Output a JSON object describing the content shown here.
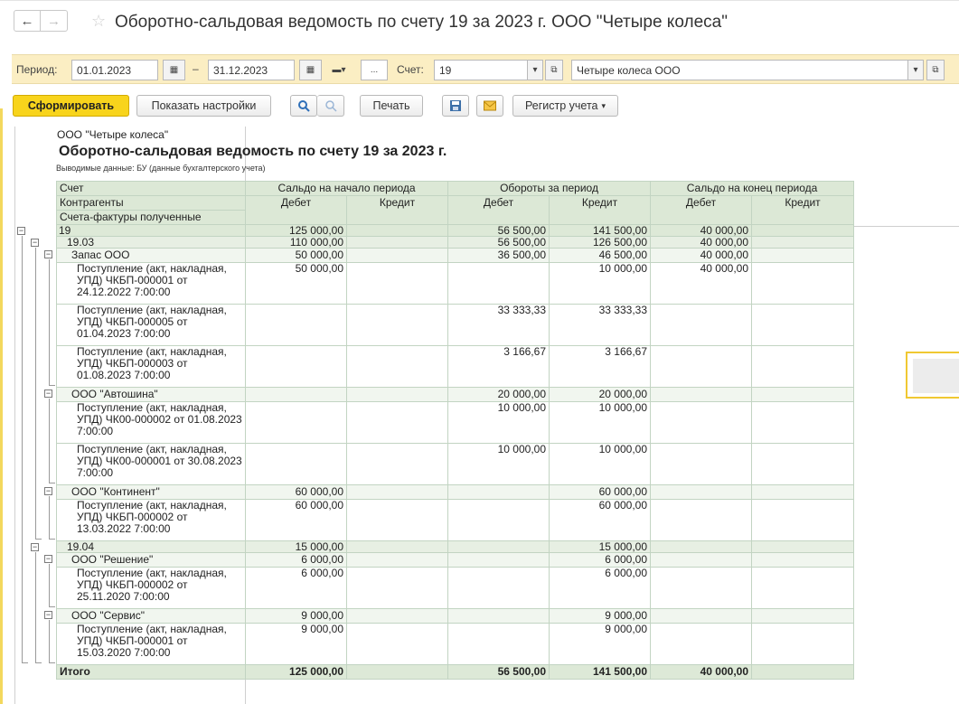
{
  "title": "Оборотно-сальдовая ведомость по счету 19 за 2023 г. ООО \"Четыре колеса\"",
  "params": {
    "period_label": "Период:",
    "date_from": "01.01.2023",
    "dash": "–",
    "date_to": "31.12.2023",
    "ellipsis": "...",
    "account_label": "Счет:",
    "account": "19",
    "organization": "Четыре колеса ООО"
  },
  "toolbar": {
    "generate": "Сформировать",
    "show_settings": "Показать настройки",
    "print": "Печать",
    "register": "Регистр учета"
  },
  "report": {
    "org": "ООО \"Четыре колеса\"",
    "title": "Оборотно-сальдовая ведомость по счету 19 за 2023 г.",
    "subtitle": "Выводимые данные:  БУ (данные бухгалтерского учета)",
    "headers": {
      "account": "Счет",
      "contractors": "Контрагенты",
      "invoices": "Счета-фактуры полученные",
      "opening": "Сальдо на начало периода",
      "turnover": "Обороты за период",
      "closing": "Сальдо на конец периода",
      "debit": "Дебет",
      "credit": "Кредит"
    },
    "rows": [
      {
        "level": 0,
        "name": "19",
        "od": "125 000,00",
        "oc": "",
        "td": "56 500,00",
        "tc": "141 500,00",
        "cd": "40 000,00",
        "cc": ""
      },
      {
        "level": 1,
        "name": "19.03",
        "od": "110 000,00",
        "oc": "",
        "td": "56 500,00",
        "tc": "126 500,00",
        "cd": "40 000,00",
        "cc": ""
      },
      {
        "level": 2,
        "name": "Запас ООО",
        "od": "50 000,00",
        "oc": "",
        "td": "36 500,00",
        "tc": "46 500,00",
        "cd": "40 000,00",
        "cc": ""
      },
      {
        "level": 3,
        "name": "Поступление (акт, накладная, УПД) ЧКБП-000001 от 24.12.2022 7:00:00",
        "od": "50 000,00",
        "oc": "",
        "td": "",
        "tc": "10 000,00",
        "cd": "40 000,00",
        "cc": ""
      },
      {
        "level": 3,
        "name": "Поступление (акт, накладная, УПД) ЧКБП-000005 от 01.04.2023 7:00:00",
        "od": "",
        "oc": "",
        "td": "33 333,33",
        "tc": "33 333,33",
        "cd": "",
        "cc": ""
      },
      {
        "level": 3,
        "name": "Поступление (акт, накладная, УПД) ЧКБП-000003 от 01.08.2023 7:00:00",
        "od": "",
        "oc": "",
        "td": "3 166,67",
        "tc": "3 166,67",
        "cd": "",
        "cc": ""
      },
      {
        "level": 2,
        "name": "ООО \"Автошина\"",
        "od": "",
        "oc": "",
        "td": "20 000,00",
        "tc": "20 000,00",
        "cd": "",
        "cc": ""
      },
      {
        "level": 3,
        "name": "Поступление (акт, накладная, УПД) ЧК00-000002 от 01.08.2023 7:00:00",
        "od": "",
        "oc": "",
        "td": "10 000,00",
        "tc": "10 000,00",
        "cd": "",
        "cc": ""
      },
      {
        "level": 3,
        "name": "Поступление (акт, накладная, УПД) ЧК00-000001 от 30.08.2023 7:00:00",
        "od": "",
        "oc": "",
        "td": "10 000,00",
        "tc": "10 000,00",
        "cd": "",
        "cc": ""
      },
      {
        "level": 2,
        "name": "ООО \"Континент\"",
        "od": "60 000,00",
        "oc": "",
        "td": "",
        "tc": "60 000,00",
        "cd": "",
        "cc": ""
      },
      {
        "level": 3,
        "name": "Поступление (акт, накладная, УПД) ЧКБП-000002 от 13.03.2022 7:00:00",
        "od": "60 000,00",
        "oc": "",
        "td": "",
        "tc": "60 000,00",
        "cd": "",
        "cc": ""
      },
      {
        "level": 1,
        "name": "19.04",
        "od": "15 000,00",
        "oc": "",
        "td": "",
        "tc": "15 000,00",
        "cd": "",
        "cc": ""
      },
      {
        "level": 2,
        "name": "ООО \"Решение\"",
        "od": "6 000,00",
        "oc": "",
        "td": "",
        "tc": "6 000,00",
        "cd": "",
        "cc": ""
      },
      {
        "level": 3,
        "name": "Поступление (акт, накладная, УПД) ЧКБП-000002 от 25.11.2020 7:00:00",
        "od": "6 000,00",
        "oc": "",
        "td": "",
        "tc": "6 000,00",
        "cd": "",
        "cc": ""
      },
      {
        "level": 2,
        "name": "ООО \"Сервис\"",
        "od": "9 000,00",
        "oc": "",
        "td": "",
        "tc": "9 000,00",
        "cd": "",
        "cc": ""
      },
      {
        "level": 3,
        "name": "Поступление (акт, накладная, УПД) ЧКБП-000001 от 15.03.2020 7:00:00",
        "od": "9 000,00",
        "oc": "",
        "td": "",
        "tc": "9 000,00",
        "cd": "",
        "cc": ""
      }
    ],
    "total": {
      "name": "Итого",
      "od": "125 000,00",
      "oc": "",
      "td": "56 500,00",
      "tc": "141 500,00",
      "cd": "40 000,00",
      "cc": ""
    }
  },
  "colors": {
    "accent_yellow": "#f8d41c",
    "param_bg": "#fbeec3",
    "grid_header": "#dce8d6"
  },
  "icons": [
    "back-arrow-icon",
    "forward-arrow-icon",
    "favorite-star-icon",
    "calendar-icon",
    "period-select-icon",
    "open-icon",
    "dropdown-icon",
    "search-icon",
    "search-cancel-icon",
    "save-icon",
    "email-icon",
    "expand-collapse-icon"
  ]
}
